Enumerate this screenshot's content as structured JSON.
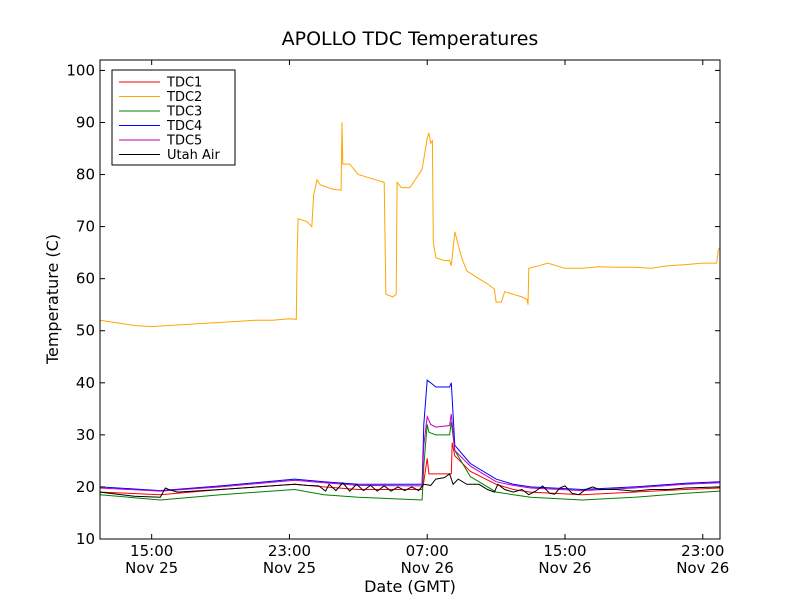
{
  "chart_data": {
    "type": "line",
    "title": "APOLLO TDC Temperatures",
    "xlabel": "Date (GMT)",
    "ylabel": "Temperature (C)",
    "ylim": [
      10,
      102
    ],
    "xlim": [
      0,
      36
    ],
    "x_unit": "hours since Nov 25 12:00 GMT",
    "yticks": [
      10,
      20,
      30,
      40,
      50,
      60,
      70,
      80,
      90,
      100
    ],
    "xticks": [
      {
        "x": 3,
        "time": "15:00",
        "date": "Nov 25"
      },
      {
        "x": 11,
        "time": "23:00",
        "date": "Nov 25"
      },
      {
        "x": 19,
        "time": "07:00",
        "date": "Nov 26"
      },
      {
        "x": 27,
        "time": "15:00",
        "date": "Nov 26"
      },
      {
        "x": 35,
        "time": "23:00",
        "date": "Nov 26"
      }
    ],
    "legend_position": "top-left",
    "series": [
      {
        "name": "TDC1",
        "color": "#ff0000",
        "points": [
          [
            0,
            19
          ],
          [
            3.5,
            18.5
          ],
          [
            7,
            19.5
          ],
          [
            11.3,
            20.5
          ],
          [
            13,
            20
          ],
          [
            15,
            19.5
          ],
          [
            18.7,
            19.5
          ],
          [
            18.8,
            21
          ],
          [
            19,
            25.5
          ],
          [
            19.1,
            22.5
          ],
          [
            20.4,
            22.5
          ],
          [
            20.45,
            28.5
          ],
          [
            20.6,
            26
          ],
          [
            21.5,
            23
          ],
          [
            23,
            20.5
          ],
          [
            24,
            19.5
          ],
          [
            25,
            19
          ],
          [
            28,
            18.5
          ],
          [
            31,
            19
          ],
          [
            34,
            19.5
          ],
          [
            36,
            19.8
          ]
        ]
      },
      {
        "name": "TDC2",
        "color": "#ffa500",
        "points": [
          [
            0,
            52
          ],
          [
            1,
            51.5
          ],
          [
            2,
            51
          ],
          [
            3,
            50.8
          ],
          [
            4,
            51
          ],
          [
            5,
            51.2
          ],
          [
            6,
            51.4
          ],
          [
            7,
            51.6
          ],
          [
            8,
            51.8
          ],
          [
            9,
            52
          ],
          [
            10,
            52
          ],
          [
            11,
            52.3
          ],
          [
            11.4,
            52.2
          ],
          [
            11.45,
            65
          ],
          [
            11.5,
            71.5
          ],
          [
            12,
            71
          ],
          [
            12.3,
            70
          ],
          [
            12.4,
            76
          ],
          [
            12.6,
            79
          ],
          [
            12.8,
            78
          ],
          [
            13.5,
            77.2
          ],
          [
            14,
            77
          ],
          [
            14.05,
            90
          ],
          [
            14.1,
            82
          ],
          [
            14.5,
            82
          ],
          [
            15,
            80
          ],
          [
            16,
            79
          ],
          [
            16.5,
            78.5
          ],
          [
            16.6,
            57
          ],
          [
            17,
            56.5
          ],
          [
            17.2,
            57
          ],
          [
            17.25,
            78.5
          ],
          [
            17.5,
            77.5
          ],
          [
            18,
            77.5
          ],
          [
            18.7,
            81
          ],
          [
            19,
            87
          ],
          [
            19.1,
            88
          ],
          [
            19.2,
            86
          ],
          [
            19.3,
            86.5
          ],
          [
            19.35,
            67
          ],
          [
            19.5,
            64
          ],
          [
            20,
            63.5
          ],
          [
            20.3,
            63.5
          ],
          [
            20.4,
            62.5
          ],
          [
            20.6,
            69
          ],
          [
            21,
            64
          ],
          [
            21.3,
            61.5
          ],
          [
            22,
            60
          ],
          [
            22.5,
            59
          ],
          [
            22.9,
            58
          ],
          [
            23,
            55.5
          ],
          [
            23.3,
            55.5
          ],
          [
            23.5,
            57.5
          ],
          [
            24,
            57
          ],
          [
            24.5,
            56.5
          ],
          [
            24.8,
            56
          ],
          [
            24.85,
            55
          ],
          [
            24.9,
            62
          ],
          [
            25.5,
            62.5
          ],
          [
            26,
            63
          ],
          [
            27,
            62
          ],
          [
            28,
            62
          ],
          [
            29,
            62.3
          ],
          [
            30,
            62.2
          ],
          [
            31,
            62.2
          ],
          [
            32,
            62
          ],
          [
            33,
            62.5
          ],
          [
            34,
            62.7
          ],
          [
            35,
            63
          ],
          [
            35.8,
            63
          ],
          [
            35.9,
            65.5
          ],
          [
            36,
            66
          ]
        ]
      },
      {
        "name": "TDC3",
        "color": "#008000",
        "points": [
          [
            0,
            18.5
          ],
          [
            3.5,
            17.5
          ],
          [
            7,
            18.5
          ],
          [
            11.3,
            19.5
          ],
          [
            13,
            18.5
          ],
          [
            15,
            18
          ],
          [
            18.7,
            17.5
          ],
          [
            18.8,
            24
          ],
          [
            19,
            32
          ],
          [
            19.1,
            30.5
          ],
          [
            19.5,
            30
          ],
          [
            20.3,
            30
          ],
          [
            20.4,
            32.5
          ],
          [
            20.6,
            27
          ],
          [
            21.5,
            22
          ],
          [
            23,
            19
          ],
          [
            24,
            18.5
          ],
          [
            25,
            18
          ],
          [
            28,
            17.5
          ],
          [
            31,
            18
          ],
          [
            34,
            18.8
          ],
          [
            36,
            19.2
          ]
        ]
      },
      {
        "name": "TDC4",
        "color": "#0000ff",
        "points": [
          [
            0,
            20
          ],
          [
            3.5,
            19.3
          ],
          [
            7,
            20.2
          ],
          [
            11.3,
            21.5
          ],
          [
            13,
            21
          ],
          [
            15,
            20.5
          ],
          [
            18.7,
            20.5
          ],
          [
            18.8,
            32
          ],
          [
            19,
            40.5
          ],
          [
            19.2,
            40
          ],
          [
            19.5,
            39.2
          ],
          [
            20.3,
            39.2
          ],
          [
            20.4,
            40
          ],
          [
            20.6,
            28
          ],
          [
            21.5,
            24.5
          ],
          [
            23,
            21.5
          ],
          [
            24,
            20.5
          ],
          [
            25,
            20
          ],
          [
            28,
            19.5
          ],
          [
            31,
            20
          ],
          [
            34,
            20.7
          ],
          [
            36,
            21
          ]
        ]
      },
      {
        "name": "TDC5",
        "color": "#bf00bf",
        "points": [
          [
            0,
            19.8
          ],
          [
            3.5,
            19.2
          ],
          [
            7,
            20
          ],
          [
            11.3,
            21.3
          ],
          [
            13,
            20.8
          ],
          [
            15,
            20.3
          ],
          [
            18.7,
            20.2
          ],
          [
            18.8,
            28
          ],
          [
            19,
            33.5
          ],
          [
            19.2,
            32
          ],
          [
            19.5,
            31.5
          ],
          [
            20.3,
            31.8
          ],
          [
            20.4,
            34
          ],
          [
            20.6,
            27
          ],
          [
            21.5,
            24
          ],
          [
            23,
            21
          ],
          [
            24,
            20.3
          ],
          [
            25,
            19.8
          ],
          [
            28,
            19.3
          ],
          [
            31,
            19.8
          ],
          [
            34,
            20.5
          ],
          [
            36,
            20.8
          ]
        ]
      },
      {
        "name": "Utah Air",
        "color": "#000000",
        "points": [
          [
            0,
            19
          ],
          [
            2,
            18.2
          ],
          [
            3.5,
            18
          ],
          [
            3.8,
            19.8
          ],
          [
            4,
            19.5
          ],
          [
            4.5,
            19
          ],
          [
            7,
            19.5
          ],
          [
            11.3,
            20.5
          ],
          [
            12,
            20.3
          ],
          [
            12.7,
            20.2
          ],
          [
            13.1,
            19.2
          ],
          [
            13.3,
            20.5
          ],
          [
            13.7,
            19.3
          ],
          [
            14.1,
            20.8
          ],
          [
            14.5,
            19.2
          ],
          [
            14.9,
            20.5
          ],
          [
            15.3,
            19.3
          ],
          [
            15.7,
            20.3
          ],
          [
            16.1,
            19.2
          ],
          [
            16.5,
            20.2
          ],
          [
            16.9,
            19.2
          ],
          [
            17.3,
            20
          ],
          [
            17.7,
            19.3
          ],
          [
            18.1,
            20
          ],
          [
            18.5,
            19.3
          ],
          [
            18.8,
            20.5
          ],
          [
            19.2,
            20.3
          ],
          [
            19.5,
            21.5
          ],
          [
            20,
            21.8
          ],
          [
            20.3,
            22.5
          ],
          [
            20.5,
            20.5
          ],
          [
            20.8,
            21.5
          ],
          [
            21.3,
            20.5
          ],
          [
            22,
            20.5
          ],
          [
            22.5,
            19.5
          ],
          [
            22.9,
            19
          ],
          [
            23.1,
            20.5
          ],
          [
            23.5,
            19.5
          ],
          [
            24,
            19
          ],
          [
            24.5,
            19.5
          ],
          [
            24.9,
            18.5
          ],
          [
            25.3,
            19.2
          ],
          [
            25.7,
            20.2
          ],
          [
            26.1,
            18.8
          ],
          [
            26.4,
            18.6
          ],
          [
            26.7,
            19.8
          ],
          [
            27,
            20.2
          ],
          [
            27.4,
            18.8
          ],
          [
            27.8,
            18.5
          ],
          [
            28.2,
            19.5
          ],
          [
            28.6,
            20
          ],
          [
            29,
            19.5
          ],
          [
            30,
            19.5
          ],
          [
            31,
            19.2
          ],
          [
            32,
            19.5
          ],
          [
            33,
            19.5
          ],
          [
            34,
            19.8
          ],
          [
            36,
            20
          ]
        ]
      }
    ]
  }
}
